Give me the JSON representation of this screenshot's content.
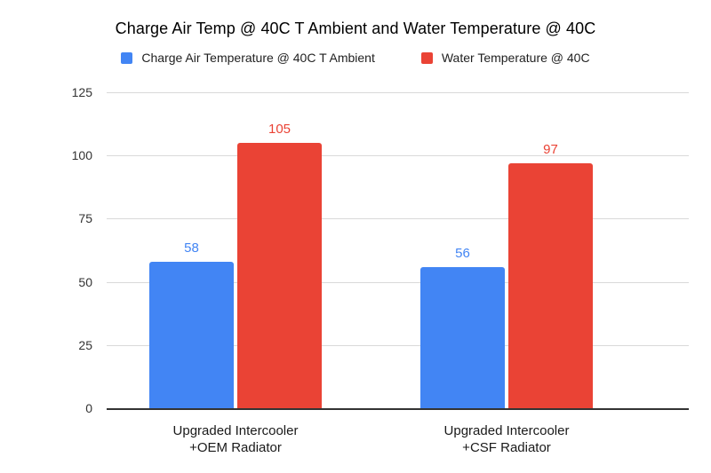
{
  "chart_data": {
    "type": "bar",
    "title": "Charge Air Temp @ 40C T Ambient and Water Temperature @ 40C",
    "categories": [
      "Upgraded Intercooler\n+OEM Radiator",
      "Upgraded Intercooler\n+CSF Radiator"
    ],
    "series": [
      {
        "name": "Charge Air Temperature @ 40C T Ambient",
        "color": "#4285F4",
        "values": [
          58,
          56
        ]
      },
      {
        "name": "Water Temperature @ 40C",
        "color": "#EA4335",
        "values": [
          105,
          97
        ]
      }
    ],
    "xlabel": "",
    "ylabel": "",
    "ylim": [
      0,
      125
    ],
    "yticks": [
      0,
      25,
      50,
      75,
      100,
      125
    ],
    "grid": true,
    "legend_position": "top",
    "data_labels": true,
    "colors": {
      "background": "#ffffff",
      "gridline": "#d9d9d9",
      "axis_line": "#333333",
      "title_text": "#000000",
      "tick_text": "#333333",
      "category_text": "#1a1a1a"
    }
  }
}
